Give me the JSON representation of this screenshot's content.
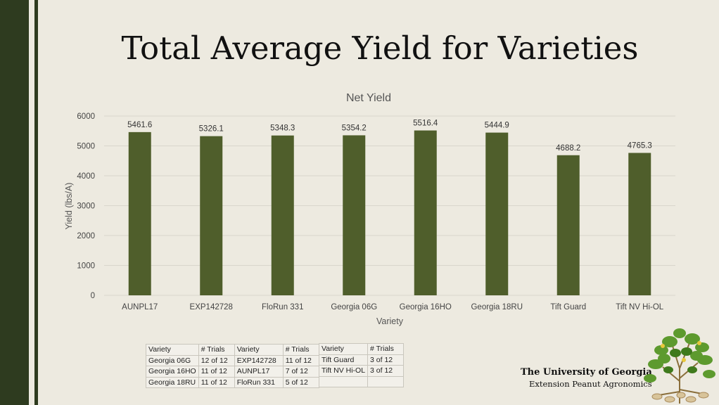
{
  "slide": {
    "title": "Total Average Yield for Varieties",
    "org_name": "The University of Georgia",
    "org_sub": "Extension Peanut Agronomics"
  },
  "colors": {
    "bar": "#4f5e2b",
    "sidebar": "#2e3b1f",
    "background": "#edeae0",
    "grid": "#d9d6cc"
  },
  "chart_data": {
    "type": "bar",
    "title": "Net Yield",
    "xlabel": "Variety",
    "ylabel": "Yield (lbs/A)",
    "categories": [
      "AUNPL17",
      "EXP142728",
      "FloRun 331",
      "Georgia 06G",
      "Georgia 16HO",
      "Georgia 18RU",
      "Tift Guard",
      "Tift NV Hi-OL"
    ],
    "values": [
      5461.6,
      5326.1,
      5348.3,
      5354.2,
      5516.4,
      5444.9,
      4688.2,
      4765.3
    ],
    "value_labels": [
      "5461.6",
      "5326.1",
      "5348.3",
      "5354.2",
      "5516.4",
      "5444.9",
      "4688.2",
      "4765.3"
    ],
    "ylim": [
      0,
      6000
    ],
    "yticks": [
      "0",
      "1000",
      "2000",
      "3000",
      "4000",
      "5000",
      "6000"
    ],
    "grid": true,
    "legend": "none"
  },
  "trials_table_1": {
    "header": [
      "Variety",
      "# Trials",
      "Variety",
      "# Trials"
    ],
    "rows": [
      [
        "Georgia 06G",
        "12 of 12",
        "EXP142728",
        "11 of 12"
      ],
      [
        "Georgia 16HO",
        "11 of 12",
        "AUNPL17",
        "7 of 12"
      ],
      [
        "Georgia 18RU",
        "11 of 12",
        "FloRun 331",
        "5 of 12"
      ]
    ]
  },
  "trials_table_2": {
    "header": [
      "Variety",
      "# Trials"
    ],
    "rows": [
      [
        "Tift Guard",
        "3 of 12"
      ],
      [
        "Tift NV Hi-OL",
        "3 of 12"
      ],
      [
        "",
        ""
      ]
    ]
  }
}
